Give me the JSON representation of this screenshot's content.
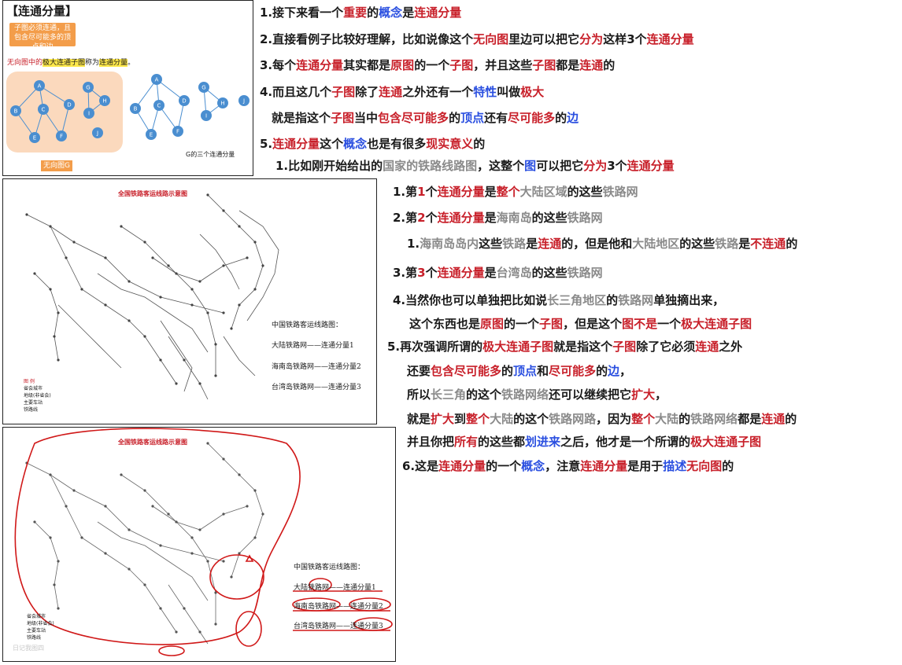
{
  "graph_panel": {
    "title": "【连通分量】",
    "callout_top": "子图必须连通，且包含尽可能多的顶点和边",
    "definition_prefix": "无向图中的",
    "definition_highlight1": "极大连通子图",
    "definition_mid": "称为",
    "definition_highlight2": "连通分量",
    "definition_suffix": "。",
    "callout_bottom": "无向图G",
    "caption": "G的三个连通分量",
    "left_nodes": [
      "A",
      "B",
      "C",
      "D",
      "E",
      "F",
      "G",
      "H",
      "I",
      "J"
    ],
    "right_nodes": [
      "A",
      "B",
      "C",
      "D",
      "E",
      "F",
      "G",
      "H",
      "I",
      "J"
    ]
  },
  "map1": {
    "title": "全国铁路客运线路示意图",
    "legend": [
      "中国铁路客运线路图：",
      "大陆铁路网——连通分量1",
      "海南岛铁路网——连通分量2",
      "台湾岛铁路网——连通分量3"
    ],
    "key_title": "图 例",
    "key_items": [
      "省会城市",
      "地级(非省会)",
      "主要车站",
      "铁路线"
    ]
  },
  "map2": {
    "title": "全国铁路客运线路示意图",
    "legend": [
      "中国铁路客运线路图：",
      "大陆铁路网——连通分量1",
      "海南岛铁路网——连通分量2",
      "台湾岛铁路网——连通分量3"
    ],
    "key_items": [
      "省会城市",
      "地级(非省会)",
      "主要车站",
      "铁路线"
    ],
    "watermark": "日记我图四"
  },
  "notes": [
    [
      [
        "1.接下来看一个",
        "black"
      ],
      [
        "重要",
        "red"
      ],
      [
        "的",
        "black"
      ],
      [
        "概念",
        "blue"
      ],
      [
        "是",
        "black"
      ],
      [
        "连通分量",
        "red"
      ]
    ],
    [
      [
        "2.直接看例子比较好理解，比如说像这个",
        "black"
      ],
      [
        "无向图",
        "red"
      ],
      [
        "里边可以把它",
        "black"
      ],
      [
        "分为",
        "red"
      ],
      [
        "这样3个",
        "black"
      ],
      [
        "连通分量",
        "red"
      ]
    ],
    [
      [
        "3.每个",
        "black"
      ],
      [
        "连通分量",
        "red"
      ],
      [
        "其实都是",
        "black"
      ],
      [
        "原图",
        "red"
      ],
      [
        "的一个",
        "black"
      ],
      [
        "子图",
        "red"
      ],
      [
        "，并且这些",
        "black"
      ],
      [
        "子图",
        "red"
      ],
      [
        "都是",
        "black"
      ],
      [
        "连通",
        "red"
      ],
      [
        "的",
        "black"
      ]
    ],
    [
      [
        "4.而且这几个",
        "black"
      ],
      [
        "子图",
        "red"
      ],
      [
        "除了",
        "black"
      ],
      [
        "连通",
        "red"
      ],
      [
        "之外还有一个",
        "black"
      ],
      [
        "特性",
        "blue"
      ],
      [
        "叫做",
        "black"
      ],
      [
        "极大",
        "red"
      ]
    ],
    [
      [
        "就是指这个",
        "black"
      ],
      [
        "子图",
        "red"
      ],
      [
        "当中",
        "black"
      ],
      [
        "包含尽可能多",
        "red"
      ],
      [
        "的",
        "black"
      ],
      [
        "顶点",
        "blue"
      ],
      [
        "还有",
        "black"
      ],
      [
        "尽可能多",
        "red"
      ],
      [
        "的",
        "black"
      ],
      [
        "边",
        "blue"
      ]
    ],
    [
      [
        "5.",
        "black"
      ],
      [
        "连通分量",
        "red"
      ],
      [
        "这个",
        "black"
      ],
      [
        "概念",
        "blue"
      ],
      [
        "也是有很多",
        "black"
      ],
      [
        "现实意义",
        "red"
      ],
      [
        "的",
        "black"
      ]
    ],
    [
      [
        "1.比如刚开始给出的",
        "black"
      ],
      [
        "国家的铁路线路图",
        "gray"
      ],
      [
        "，这整个",
        "black"
      ],
      [
        "图",
        "blue"
      ],
      [
        "可以把它",
        "black"
      ],
      [
        "分为",
        "red"
      ],
      [
        "3个",
        "black"
      ],
      [
        "连通分量",
        "red"
      ]
    ],
    [
      [
        "1.第",
        "black"
      ],
      [
        "1",
        "red"
      ],
      [
        "个",
        "black"
      ],
      [
        "连通分量",
        "red"
      ],
      [
        "是",
        "black"
      ],
      [
        "整个",
        "red"
      ],
      [
        "大陆区域",
        "gray"
      ],
      [
        "的这些",
        "black"
      ],
      [
        "铁路网",
        "gray"
      ]
    ],
    [
      [
        "2.第",
        "black"
      ],
      [
        "2",
        "red"
      ],
      [
        "个",
        "black"
      ],
      [
        "连通分量",
        "red"
      ],
      [
        "是",
        "black"
      ],
      [
        "海南岛",
        "gray"
      ],
      [
        "的这些",
        "black"
      ],
      [
        "铁路网",
        "gray"
      ]
    ],
    [
      [
        "1.",
        "black"
      ],
      [
        "海南岛岛内",
        "gray"
      ],
      [
        "这些",
        "black"
      ],
      [
        "铁路",
        "gray"
      ],
      [
        "是",
        "black"
      ],
      [
        "连通",
        "red"
      ],
      [
        "的，但是他和",
        "black"
      ],
      [
        "大陆地区",
        "gray"
      ],
      [
        "的这些",
        "black"
      ],
      [
        "铁路",
        "gray"
      ],
      [
        "是",
        "black"
      ],
      [
        "不连通",
        "red"
      ],
      [
        "的",
        "black"
      ]
    ],
    [
      [
        "3.第",
        "black"
      ],
      [
        "3",
        "red"
      ],
      [
        "个",
        "black"
      ],
      [
        "连通分量",
        "red"
      ],
      [
        "是",
        "black"
      ],
      [
        "台湾岛",
        "gray"
      ],
      [
        "的这些",
        "black"
      ],
      [
        "铁路网",
        "gray"
      ]
    ],
    [
      [
        "4.当然你也可以单独把比如说",
        "black"
      ],
      [
        "长三角地区",
        "gray"
      ],
      [
        "的",
        "black"
      ],
      [
        "铁路网",
        "gray"
      ],
      [
        "单独摘出来，",
        "black"
      ]
    ],
    [
      [
        "这个东西也是",
        "black"
      ],
      [
        "原图",
        "red"
      ],
      [
        "的一个",
        "black"
      ],
      [
        "子图",
        "red"
      ],
      [
        "，但是这个",
        "black"
      ],
      [
        "图",
        "red"
      ],
      [
        "不是",
        "red"
      ],
      [
        "一个",
        "black"
      ],
      [
        "极大连通子图",
        "red"
      ]
    ],
    [
      [
        "5.再次强调所谓的",
        "black"
      ],
      [
        "极大连通子图",
        "red"
      ],
      [
        "就是指这个",
        "black"
      ],
      [
        "子图",
        "red"
      ],
      [
        "除了它必须",
        "black"
      ],
      [
        "连通",
        "red"
      ],
      [
        "之外",
        "black"
      ]
    ],
    [
      [
        "还要",
        "black"
      ],
      [
        "包含尽可能多",
        "red"
      ],
      [
        "的",
        "black"
      ],
      [
        "顶点",
        "blue"
      ],
      [
        "和",
        "black"
      ],
      [
        "尽可能多",
        "red"
      ],
      [
        "的",
        "black"
      ],
      [
        "边",
        "blue"
      ],
      [
        "，",
        "black"
      ]
    ],
    [
      [
        "所以",
        "black"
      ],
      [
        "长三角",
        "gray"
      ],
      [
        "的这个",
        "black"
      ],
      [
        "铁路网络",
        "gray"
      ],
      [
        "还可以继续把它",
        "black"
      ],
      [
        "扩大",
        "red"
      ],
      [
        "，",
        "black"
      ]
    ],
    [
      [
        "就是",
        "black"
      ],
      [
        "扩大",
        "red"
      ],
      [
        "到",
        "black"
      ],
      [
        "整个",
        "red"
      ],
      [
        "大陆",
        "gray"
      ],
      [
        "的这个",
        "black"
      ],
      [
        "铁路网路",
        "gray"
      ],
      [
        "，因为",
        "black"
      ],
      [
        "整个",
        "red"
      ],
      [
        "大陆",
        "gray"
      ],
      [
        "的",
        "black"
      ],
      [
        "铁路网络",
        "gray"
      ],
      [
        "都是",
        "black"
      ],
      [
        "连通",
        "red"
      ],
      [
        "的",
        "black"
      ]
    ],
    [
      [
        "并且你把",
        "black"
      ],
      [
        "所有",
        "red"
      ],
      [
        "的这些都",
        "black"
      ],
      [
        "划进来",
        "blue"
      ],
      [
        "之后，他才是一个所谓的",
        "black"
      ],
      [
        "极大连通子图",
        "red"
      ]
    ],
    [
      [
        "6.这是",
        "black"
      ],
      [
        "连通分量",
        "red"
      ],
      [
        "的一个",
        "black"
      ],
      [
        "概念",
        "blue"
      ],
      [
        "，注意",
        "black"
      ],
      [
        "连通分量",
        "red"
      ],
      [
        "是用于",
        "black"
      ],
      [
        "描述",
        "blue"
      ],
      [
        "无向图",
        "red"
      ],
      [
        "的",
        "black"
      ]
    ]
  ]
}
